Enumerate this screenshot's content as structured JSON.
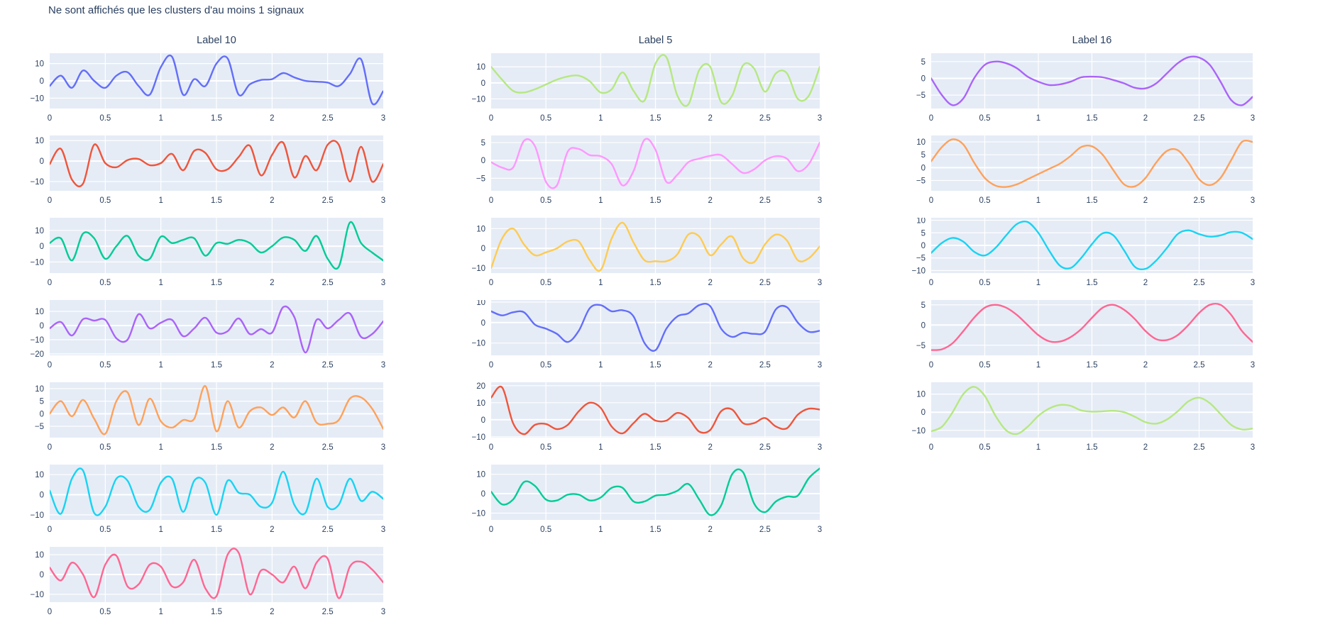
{
  "title": "Ne sont affichés que les clusters d'au moins 1 signaux",
  "theme": {
    "plot_background": "#e5ecf6",
    "grid_color": "#ffffff",
    "text_color": "#2a3f5f"
  },
  "chart_data": {
    "type": "line",
    "plot_bg": "#e5ecf6",
    "x_label": "",
    "y_label": "",
    "x_start": 0,
    "x_step": 0.1,
    "x_ticks": [
      "0",
      "0.5",
      "1",
      "1.5",
      "2",
      "2.5",
      "3"
    ],
    "xrange": [
      0,
      3
    ],
    "grid": true,
    "legend": "none",
    "columns": [
      {
        "label": "Label 10",
        "charts": [
          {
            "color": "#636efa",
            "y_ticks": [
              10,
              0,
              -10
            ],
            "y_min": -16,
            "y_max": 16,
            "values": [
              -3,
              3,
              -4,
              6,
              0,
              -4,
              3,
              5,
              -3,
              -8,
              8,
              14,
              -8,
              1,
              -3,
              10,
              13,
              -8,
              -2,
              0.5,
              1,
              4.5,
              2,
              0,
              -0.5,
              -1,
              -3,
              4,
              12.5,
              -13,
              -6
            ]
          },
          {
            "color": "#ef553b",
            "y_ticks": [
              10,
              0,
              -10
            ],
            "y_min": -14.5,
            "y_max": 12.5,
            "values": [
              -1.5,
              6,
              -9,
              -11,
              8,
              -1,
              -3,
              0.5,
              1,
              -2,
              -1,
              3.5,
              -4.5,
              5,
              4,
              -4,
              -4,
              2,
              7.5,
              -7,
              3,
              9,
              -8,
              2.5,
              -4.5,
              8,
              8,
              -10,
              7,
              -10,
              -1.5
            ]
          },
          {
            "color": "#00cc96",
            "y_ticks": [
              10,
              0,
              -10
            ],
            "y_min": -17,
            "y_max": 18,
            "values": [
              2,
              5,
              -9,
              8,
              5,
              -8,
              0,
              6.5,
              -6,
              -8,
              6,
              2,
              4,
              5,
              -6,
              2,
              1.5,
              4,
              2,
              -4,
              0,
              5.5,
              4,
              -3,
              6.5,
              -8,
              -13,
              15,
              2,
              -4,
              -9
            ]
          },
          {
            "color": "#ab63fa",
            "y_ticks": [
              10,
              0,
              -10,
              -20
            ],
            "y_min": -21,
            "y_max": 18,
            "values": [
              -2,
              2.5,
              -7,
              4.5,
              3.5,
              4,
              -9,
              -10,
              8,
              -2,
              2,
              4,
              -7.5,
              -2,
              5.5,
              -5,
              -4,
              5,
              -6,
              -2.5,
              -5,
              13,
              6,
              -19,
              4,
              -2,
              4,
              8.5,
              -8,
              -6,
              3
            ]
          },
          {
            "color": "#ffa15a",
            "y_ticks": [
              10,
              5,
              0,
              -5
            ],
            "y_min": -9.5,
            "y_max": 12.5,
            "values": [
              0,
              5,
              -1,
              5.5,
              -2,
              -8,
              5,
              8.5,
              -4.5,
              6,
              -3,
              -5.5,
              -2.5,
              -2,
              11,
              -7,
              5,
              -5.5,
              1,
              2.5,
              -0.5,
              2.5,
              -1.5,
              5,
              -3.5,
              -4,
              -2.5,
              6,
              6.5,
              2,
              -6
            ]
          },
          {
            "color": "#19d3f3",
            "y_ticks": [
              10,
              0,
              -10
            ],
            "y_min": -12.5,
            "y_max": 15,
            "values": [
              2,
              -9.5,
              8,
              12,
              -9,
              -6,
              8,
              7,
              -6,
              -7.5,
              6,
              8,
              -8.5,
              7,
              6,
              -10,
              7,
              1,
              0,
              -6,
              -4,
              11.5,
              -5,
              -9,
              8,
              -6,
              -5,
              8,
              -3,
              1.5,
              -2
            ]
          },
          {
            "color": "#ff6692",
            "y_ticks": [
              10,
              0,
              -10
            ],
            "y_min": -14,
            "y_max": 14,
            "values": [
              3.5,
              -3,
              6,
              0,
              -11.5,
              5,
              9.5,
              -6,
              -5,
              5,
              4,
              -6,
              -4,
              7.5,
              -7,
              -11,
              10,
              11,
              -10,
              2,
              0,
              -4,
              4,
              -7,
              6,
              8,
              -12,
              4,
              6.5,
              2.5,
              -4
            ]
          }
        ]
      },
      {
        "label": "Label 5",
        "charts": [
          {
            "color": "#b6e880",
            "y_ticks": [
              10,
              0,
              -10
            ],
            "y_min": -16,
            "y_max": 18.5,
            "values": [
              10,
              2,
              -5,
              -6,
              -4,
              -1,
              2,
              4,
              4.5,
              1,
              -6,
              -4,
              6.5,
              -5,
              -11,
              12,
              16,
              -8,
              -13.5,
              8,
              10,
              -12,
              -8,
              11,
              9,
              -5.5,
              6,
              6,
              -10,
              -8,
              10
            ]
          },
          {
            "color": "#ff97ff",
            "y_ticks": [
              5,
              0,
              -5
            ],
            "y_min": -8.5,
            "y_max": 7,
            "values": [
              -0.5,
              -2,
              -2,
              5.5,
              4,
              -6,
              -7,
              2.5,
              3.2,
              1.5,
              1.2,
              -1,
              -7,
              -3,
              5.8,
              3,
              -6,
              -4,
              -0.5,
              0.5,
              1.3,
              1.5,
              -1,
              -3.5,
              -2.5,
              0,
              1.2,
              0.5,
              -3,
              -1,
              5
            ]
          },
          {
            "color": "#fecb52",
            "y_ticks": [
              10,
              0,
              -10
            ],
            "y_min": -12.5,
            "y_max": 15.5,
            "values": [
              -10,
              5,
              10,
              2,
              -3.5,
              -2,
              0,
              3.5,
              3.5,
              -6,
              -11,
              5,
              13,
              3,
              -6,
              -6.5,
              -6.5,
              -3,
              7,
              6,
              -3.5,
              2,
              6,
              -5,
              -7,
              2,
              7,
              4,
              -6,
              -5,
              1
            ]
          },
          {
            "color": "#636efa",
            "y_ticks": [
              10,
              0,
              -10
            ],
            "y_min": -16,
            "y_max": 11,
            "values": [
              5.5,
              3.5,
              5,
              5,
              -1,
              -3,
              -5.5,
              -9.5,
              -4,
              7,
              8.5,
              5.5,
              6,
              3,
              -10,
              -13.5,
              -3,
              3,
              4.5,
              8.5,
              8,
              -3,
              -7,
              -5,
              -5.5,
              -4.5,
              6.5,
              7.5,
              0,
              -4.5,
              -4
            ]
          },
          {
            "color": "#ef553b",
            "y_ticks": [
              20,
              10,
              0,
              -10
            ],
            "y_min": -10.5,
            "y_max": 22,
            "values": [
              13,
              19,
              -2,
              -8.5,
              -3,
              -2.5,
              -5.5,
              -3,
              5,
              10,
              7,
              -4,
              -8,
              -2,
              3.5,
              -0.5,
              -0.5,
              4,
              1,
              -7,
              -6,
              5,
              6,
              -2,
              -2,
              1,
              -4,
              -5,
              3,
              6.5,
              6
            ]
          },
          {
            "color": "#00cc96",
            "y_ticks": [
              10,
              0,
              -10
            ],
            "y_min": -13.5,
            "y_max": 15,
            "values": [
              1,
              -5.5,
              -3,
              6,
              4,
              -3,
              -3.5,
              -0.5,
              -0.5,
              -3.5,
              -2,
              3,
              3,
              -4,
              -4,
              -1,
              -0.5,
              1.5,
              5,
              -3,
              -11,
              -6,
              10,
              11,
              -5,
              -9.5,
              -4,
              -1.5,
              -1,
              8,
              13
            ]
          }
        ]
      },
      {
        "label": "Label 16",
        "charts": [
          {
            "color": "#ab63fa",
            "y_ticks": [
              5,
              0,
              -5
            ],
            "y_min": -9,
            "y_max": 7.5,
            "values": [
              0,
              -5,
              -8,
              -6,
              0,
              4,
              5,
              4.5,
              3,
              0.5,
              -1,
              -2,
              -1.8,
              -1,
              0.3,
              0.5,
              0.3,
              -0.5,
              -1.5,
              -2.8,
              -3,
              -1.5,
              1.5,
              4.5,
              6.3,
              6.2,
              4,
              -1,
              -6.5,
              -8,
              -5.5
            ]
          },
          {
            "color": "#ffa15a",
            "y_ticks": [
              10,
              5,
              0,
              -5
            ],
            "y_min": -9,
            "y_max": 12.5,
            "values": [
              2.5,
              8,
              11,
              9,
              2,
              -4,
              -7,
              -7.5,
              -6.5,
              -4.5,
              -2.5,
              -0.5,
              1.5,
              4.5,
              8,
              8.3,
              5,
              -1,
              -6.5,
              -7.3,
              -4,
              2,
              6.5,
              6.8,
              2,
              -4.5,
              -6.8,
              -4,
              3,
              10,
              10
            ]
          },
          {
            "color": "#19d3f3",
            "y_ticks": [
              10,
              5,
              0,
              -5,
              -10
            ],
            "y_min": -11,
            "y_max": 11,
            "values": [
              -3,
              1,
              3,
              1.5,
              -2.5,
              -4,
              -1,
              4,
              8.5,
              9.3,
              5,
              -2,
              -8,
              -9,
              -5,
              0.5,
              4.8,
              4,
              -2,
              -8.5,
              -9.3,
              -6,
              -1,
              4.5,
              6,
              4.5,
              3.5,
              4,
              5.3,
              5,
              2.5
            ]
          },
          {
            "color": "#ff6692",
            "y_ticks": [
              5,
              0,
              -5
            ],
            "y_min": -7.5,
            "y_max": 6.2,
            "values": [
              -6.2,
              -6,
              -4.5,
              -1.5,
              1.8,
              4.3,
              5,
              4.3,
              2.5,
              0,
              -2.5,
              -4,
              -4.1,
              -3,
              -1,
              1.8,
              4.3,
              5,
              3.8,
              1.5,
              -1.5,
              -3.5,
              -3.7,
              -2.5,
              0,
              3,
              5,
              5,
              2.5,
              -1.5,
              -4.2
            ]
          },
          {
            "color": "#b6e880",
            "y_ticks": [
              10,
              0,
              -10
            ],
            "y_min": -14,
            "y_max": 16.5,
            "values": [
              -10.5,
              -8,
              0,
              10,
              14,
              9,
              -2,
              -10,
              -12,
              -8,
              -2,
              2,
              4,
              3.5,
              1,
              0.3,
              0.5,
              0.8,
              0,
              -2.5,
              -5.5,
              -6.3,
              -4,
              0.5,
              6,
              8,
              5,
              -1,
              -7,
              -9.5,
              -9
            ]
          }
        ]
      }
    ]
  }
}
